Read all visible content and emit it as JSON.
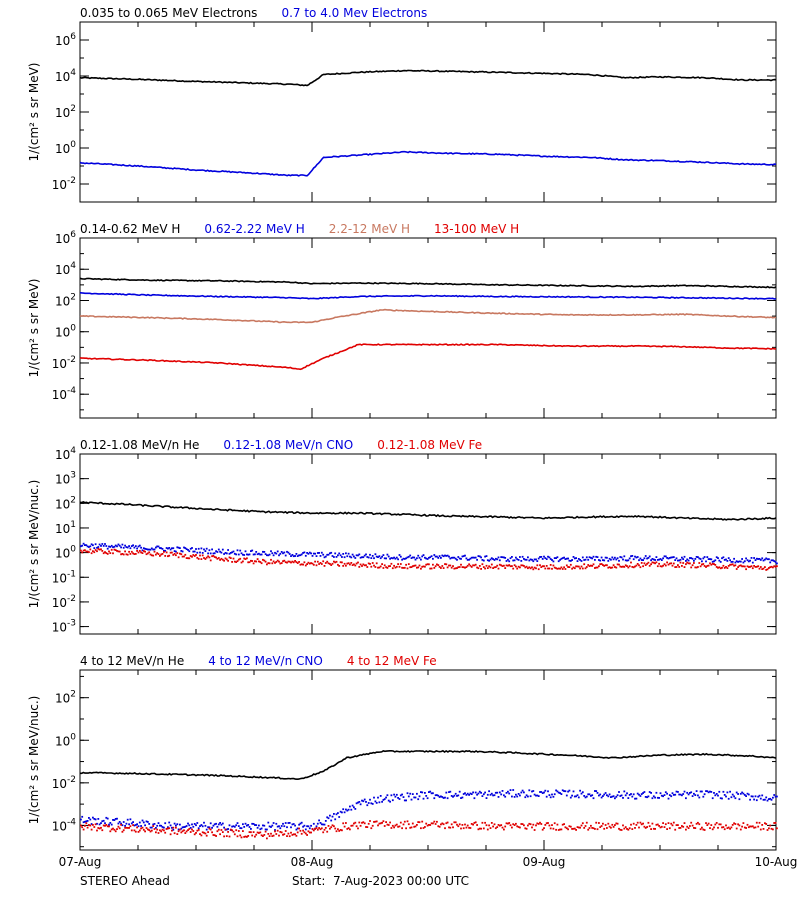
{
  "chart_data": [
    {
      "type": "line",
      "log_y": true,
      "ylim": [
        0.001,
        10000000
      ],
      "xlim": [
        0,
        3
      ],
      "ylabel": "1/(cm² s sr MeV)",
      "y_ticks": [
        {
          "value": 0.01,
          "base": "10",
          "exp": "-2"
        },
        {
          "value": 1,
          "base": "10",
          "exp": "0"
        },
        {
          "value": 100,
          "base": "10",
          "exp": "2"
        },
        {
          "value": 10000,
          "base": "10",
          "exp": "4"
        },
        {
          "value": 1000000,
          "base": "10",
          "exp": "6"
        }
      ],
      "series": [
        {
          "name": "0.035 to 0.065 MeV Electrons",
          "color": "#000000",
          "style": "line",
          "x": [
            0,
            0.25,
            0.5,
            0.75,
            0.9,
            0.98,
            1.05,
            1.2,
            1.4,
            1.6,
            1.8,
            2.0,
            2.2,
            2.35,
            2.5,
            2.7,
            2.85,
            3.0
          ],
          "y": [
            8000,
            6500,
            5000,
            4000,
            3500,
            3000,
            12000,
            16000,
            20000,
            18000,
            16000,
            14000,
            12000,
            8000,
            9000,
            8000,
            6000,
            6000
          ]
        },
        {
          "name": "0.7 to 4.0 Mev Electrons",
          "color": "#0000dd",
          "style": "line",
          "x": [
            0,
            0.25,
            0.5,
            0.75,
            0.9,
            0.98,
            1.05,
            1.2,
            1.4,
            1.6,
            1.8,
            2.0,
            2.2,
            2.35,
            2.5,
            2.7,
            2.85,
            3.0
          ],
          "y": [
            0.15,
            0.1,
            0.06,
            0.04,
            0.03,
            0.03,
            0.3,
            0.4,
            0.6,
            0.5,
            0.45,
            0.35,
            0.3,
            0.22,
            0.2,
            0.16,
            0.13,
            0.12
          ]
        }
      ]
    },
    {
      "type": "line",
      "log_y": true,
      "ylim": [
        3e-06,
        1000000
      ],
      "xlim": [
        0,
        3
      ],
      "ylabel": "1/(cm² s sr MeV)",
      "y_ticks": [
        {
          "value": 0.0001,
          "base": "10",
          "exp": "-4"
        },
        {
          "value": 0.01,
          "base": "10",
          "exp": "-2"
        },
        {
          "value": 1,
          "base": "10",
          "exp": "0"
        },
        {
          "value": 100,
          "base": "10",
          "exp": "2"
        },
        {
          "value": 10000,
          "base": "10",
          "exp": "4"
        },
        {
          "value": 1000000,
          "base": "10",
          "exp": "6"
        }
      ],
      "series": [
        {
          "name": "0.14-0.62 MeV H",
          "color": "#000000",
          "style": "line",
          "x": [
            0,
            0.3,
            0.6,
            0.9,
            1.0,
            1.2,
            1.5,
            1.8,
            2.1,
            2.4,
            2.6,
            2.8,
            3.0
          ],
          "y": [
            2500,
            2000,
            1800,
            1500,
            1200,
            1300,
            1200,
            1000,
            900,
            800,
            900,
            800,
            700
          ]
        },
        {
          "name": "0.62-2.22 MeV H",
          "color": "#0000dd",
          "style": "line",
          "x": [
            0,
            0.3,
            0.6,
            0.9,
            1.0,
            1.2,
            1.5,
            1.8,
            2.1,
            2.4,
            2.6,
            2.8,
            3.0
          ],
          "y": [
            300,
            220,
            180,
            150,
            130,
            180,
            200,
            180,
            170,
            160,
            150,
            140,
            130
          ]
        },
        {
          "name": "2.2-12 MeV H",
          "color": "#c87860",
          "style": "line",
          "x": [
            0,
            0.3,
            0.6,
            0.9,
            1.0,
            1.1,
            1.3,
            1.5,
            1.8,
            2.1,
            2.4,
            2.6,
            2.8,
            3.0
          ],
          "y": [
            10,
            8,
            6,
            4,
            4,
            8,
            25,
            20,
            15,
            12,
            12,
            13,
            10,
            8
          ]
        },
        {
          "name": "13-100 MeV H",
          "color": "#e00000",
          "style": "line",
          "x": [
            0,
            0.3,
            0.6,
            0.9,
            0.95,
            1.05,
            1.2,
            1.5,
            1.8,
            2.1,
            2.4,
            2.6,
            2.8,
            3.0
          ],
          "y": [
            0.02,
            0.015,
            0.01,
            0.005,
            0.004,
            0.02,
            0.15,
            0.15,
            0.15,
            0.12,
            0.12,
            0.11,
            0.09,
            0.08
          ]
        }
      ]
    },
    {
      "type": "scatter",
      "log_y": true,
      "ylim": [
        0.0005,
        10000
      ],
      "xlim": [
        0,
        3
      ],
      "ylabel": "1/(cm² s sr MeV/nuc.)",
      "y_ticks": [
        {
          "value": 0.001,
          "base": "10",
          "exp": "-3"
        },
        {
          "value": 0.01,
          "base": "10",
          "exp": "-2"
        },
        {
          "value": 0.1,
          "base": "10",
          "exp": "-1"
        },
        {
          "value": 1,
          "base": "10",
          "exp": "0"
        },
        {
          "value": 10,
          "base": "10",
          "exp": "1"
        },
        {
          "value": 100,
          "base": "10",
          "exp": "2"
        },
        {
          "value": 1000,
          "base": "10",
          "exp": "3"
        },
        {
          "value": 10000,
          "base": "10",
          "exp": "4"
        }
      ],
      "series": [
        {
          "name": "0.12-1.08 MeV/n He",
          "color": "#000000",
          "style": "line",
          "x": [
            0,
            0.2,
            0.4,
            0.6,
            0.8,
            1.0,
            1.2,
            1.4,
            1.6,
            1.8,
            2.0,
            2.2,
            2.4,
            2.6,
            2.8,
            3.0
          ],
          "y": [
            110,
            90,
            70,
            55,
            45,
            40,
            40,
            35,
            30,
            28,
            25,
            28,
            30,
            25,
            22,
            25
          ]
        },
        {
          "name": "0.12-1.08 MeV/n CNO",
          "color": "#0000dd",
          "style": "dots",
          "x": [
            0,
            0.2,
            0.4,
            0.6,
            0.8,
            1.0,
            1.2,
            1.4,
            1.6,
            1.8,
            2.0,
            2.2,
            2.4,
            2.6,
            2.8,
            3.0
          ],
          "y": [
            2.2,
            1.8,
            1.5,
            1.2,
            1.0,
            0.9,
            0.8,
            0.7,
            0.7,
            0.6,
            0.6,
            0.6,
            0.65,
            0.6,
            0.55,
            0.5
          ]
        },
        {
          "name": "0.12-1.08 MeV Fe",
          "color": "#e00000",
          "style": "dots",
          "x": [
            0,
            0.2,
            0.4,
            0.6,
            0.8,
            1.0,
            1.2,
            1.4,
            1.6,
            1.8,
            2.0,
            2.2,
            2.4,
            2.6,
            2.8,
            3.0
          ],
          "y": [
            1.3,
            1.1,
            0.9,
            0.6,
            0.45,
            0.4,
            0.35,
            0.3,
            0.3,
            0.3,
            0.28,
            0.3,
            0.35,
            0.35,
            0.3,
            0.25
          ]
        }
      ]
    },
    {
      "type": "scatter",
      "log_y": true,
      "ylim": [
        7e-06,
        2000
      ],
      "xlim": [
        0,
        3
      ],
      "ylabel": "1/(cm² s sr MeV/nuc.)",
      "x_ticks": [
        "07-Aug",
        "08-Aug",
        "09-Aug",
        "10-Aug"
      ],
      "y_ticks": [
        {
          "value": 0.0001,
          "base": "10",
          "exp": "-4"
        },
        {
          "value": 0.01,
          "base": "10",
          "exp": "-2"
        },
        {
          "value": 1,
          "base": "10",
          "exp": "0"
        },
        {
          "value": 100,
          "base": "10",
          "exp": "2"
        }
      ],
      "series": [
        {
          "name": "4 to 12 MeV/n He",
          "color": "#000000",
          "style": "line",
          "x": [
            0,
            0.2,
            0.4,
            0.6,
            0.8,
            0.95,
            1.05,
            1.15,
            1.3,
            1.5,
            1.7,
            1.9,
            2.1,
            2.3,
            2.5,
            2.7,
            2.9,
            3.0
          ],
          "y": [
            0.03,
            0.028,
            0.025,
            0.022,
            0.018,
            0.015,
            0.035,
            0.15,
            0.3,
            0.3,
            0.3,
            0.25,
            0.2,
            0.15,
            0.2,
            0.22,
            0.18,
            0.15
          ]
        },
        {
          "name": "4 to 12 MeV/n CNO",
          "color": "#0000dd",
          "style": "dots",
          "x": [
            0,
            0.2,
            0.4,
            0.6,
            0.8,
            1.0,
            1.1,
            1.2,
            1.3,
            1.5,
            1.7,
            1.9,
            2.1,
            2.3,
            2.5,
            2.7,
            2.9,
            3.0
          ],
          "y": [
            0.0002,
            0.00015,
            0.0001,
            0.0001,
            0.0001,
            0.0001,
            0.0003,
            0.0012,
            0.002,
            0.003,
            0.003,
            0.0035,
            0.0033,
            0.003,
            0.0028,
            0.0032,
            0.0025,
            0.002
          ]
        },
        {
          "name": "4 to 12 MeV Fe",
          "color": "#e00000",
          "style": "dots",
          "x": [
            0,
            0.2,
            0.4,
            0.6,
            0.8,
            1.0,
            1.2,
            1.5,
            1.8,
            2.1,
            2.4,
            2.7,
            3.0
          ],
          "y": [
            0.0001,
            8e-05,
            6e-05,
            5e-05,
            4e-05,
            6e-05,
            0.00012,
            0.00012,
            0.0001,
            0.0001,
            0.0001,
            0.0001,
            0.0001
          ]
        }
      ]
    }
  ],
  "footer": {
    "spacecraft": "STEREO Ahead",
    "start_text": "Start:  7-Aug-2023 00:00 UTC"
  }
}
